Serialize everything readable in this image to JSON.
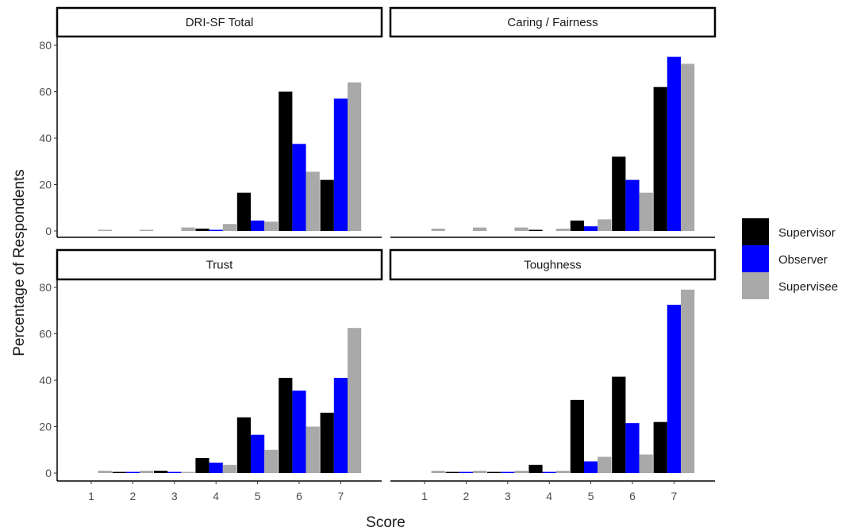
{
  "chart_data": {
    "type": "bar",
    "xlabel": "Score",
    "ylabel": "Percentage of Respondents",
    "categories": [
      "1",
      "2",
      "3",
      "4",
      "5",
      "6",
      "7"
    ],
    "ylim": [
      0,
      83
    ],
    "yticks": [
      0,
      20,
      40,
      60,
      80
    ],
    "grid": false,
    "legend_position": "right",
    "series_styles": [
      {
        "name": "Supervisor",
        "color": "#000000"
      },
      {
        "name": "Observer",
        "color": "#0000FF"
      },
      {
        "name": "Supervisee",
        "color": "#A9A9A9"
      }
    ],
    "panels": [
      {
        "title": "DRI-SF Total",
        "series": [
          {
            "name": "Supervisor",
            "values": [
              0,
              0,
              0,
              1.0,
              16.5,
              60,
              22
            ]
          },
          {
            "name": "Observer",
            "values": [
              0,
              0,
              0,
              0.5,
              4.5,
              37.5,
              57
            ]
          },
          {
            "name": "Supervisee",
            "values": [
              0.5,
              0.5,
              1.5,
              3,
              4,
              25.5,
              64
            ]
          }
        ]
      },
      {
        "title": "Caring / Fairness",
        "series": [
          {
            "name": "Supervisor",
            "values": [
              0,
              0,
              0,
              0.5,
              4.5,
              32,
              62
            ]
          },
          {
            "name": "Observer",
            "values": [
              0,
              0,
              0,
              0,
              2,
              22,
              75
            ]
          },
          {
            "name": "Supervisee",
            "values": [
              1,
              1.5,
              1.5,
              1,
              5,
              16.5,
              72
            ]
          }
        ]
      },
      {
        "title": "Trust",
        "series": [
          {
            "name": "Supervisor",
            "values": [
              0,
              0.5,
              1,
              6.5,
              24,
              41,
              26
            ]
          },
          {
            "name": "Observer",
            "values": [
              0,
              0.5,
              0.5,
              4.5,
              16.5,
              35.5,
              41
            ]
          },
          {
            "name": "Supervisee",
            "values": [
              1,
              1,
              0.5,
              3.5,
              10,
              20,
              62.5
            ]
          }
        ]
      },
      {
        "title": "Toughness",
        "series": [
          {
            "name": "Supervisor",
            "values": [
              0,
              0.5,
              0.5,
              3.5,
              31.5,
              41.5,
              22
            ]
          },
          {
            "name": "Observer",
            "values": [
              0,
              0.5,
              0.5,
              0.5,
              5,
              21.5,
              72.5
            ]
          },
          {
            "name": "Supervisee",
            "values": [
              1,
              1,
              1,
              1,
              7,
              8,
              79
            ]
          }
        ]
      }
    ]
  }
}
